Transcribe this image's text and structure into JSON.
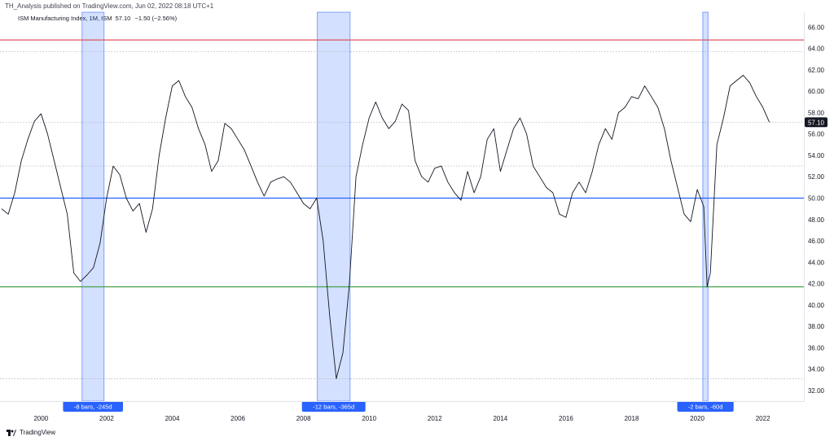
{
  "publisher_line": "TH_Analysis published on TradingView.com, Jun 02, 2022 08:18 UTC+1",
  "legend": {
    "name": "ISM Manufacturing Index, 1M, ISM",
    "value": "57.10",
    "change": "−1.50 (−2.56%)"
  },
  "footer_logo": "TradingView",
  "colors": {
    "line": "#131722",
    "red_level": "#e05260",
    "blue_level": "#2962ff",
    "green_level": "#43a047",
    "band_fill": "#2962ff",
    "label_bg": "#2962ff",
    "axis_text": "#131722",
    "price_label_bg": "#131722"
  },
  "chart_data": {
    "type": "line",
    "xlim": [
      1998.75,
      2023.25
    ],
    "ylim": [
      31.0,
      67.4
    ],
    "x_ticks": [
      "2000",
      "2002",
      "2004",
      "2006",
      "2008",
      "2010",
      "2012",
      "2014",
      "2016",
      "2018",
      "2020",
      "2022"
    ],
    "y_ticks": [
      "32.00",
      "34.00",
      "36.00",
      "38.00",
      "40.00",
      "42.00",
      "44.00",
      "46.00",
      "48.00",
      "50.00",
      "52.00",
      "54.00",
      "56.00",
      "58.00",
      "60.00",
      "62.00",
      "64.00",
      "66.00"
    ],
    "last_value_label": "57.10",
    "last_value": 57.1,
    "horizontal_levels": [
      {
        "value": 64.8,
        "color": "red"
      },
      {
        "value": 50.0,
        "color": "blue"
      },
      {
        "value": 41.7,
        "color": "green"
      }
    ],
    "dotted_levels": [
      63.7,
      57.1,
      53.0,
      33.1
    ],
    "shaded_ranges": [
      {
        "x0": 2001.25,
        "x1": 2001.92,
        "label": "-8 bars, -245d"
      },
      {
        "x0": 2008.42,
        "x1": 2009.42,
        "label": "-12 bars, -365d"
      },
      {
        "x0": 2020.17,
        "x1": 2020.33,
        "label": "-2 bars, -60d"
      }
    ],
    "series": [
      {
        "x": [
          1998.8,
          1999.0,
          1999.2,
          1999.4,
          1999.6,
          1999.8,
          2000.0,
          2000.2,
          2000.4,
          2000.6,
          2000.8,
          2001.0,
          2001.2,
          2001.4,
          2001.6,
          2001.8,
          2002.0,
          2002.2,
          2002.4,
          2002.6,
          2002.8,
          2003.0,
          2003.2,
          2003.4,
          2003.6,
          2003.8,
          2004.0,
          2004.2,
          2004.4,
          2004.6,
          2004.8,
          2005.0,
          2005.2,
          2005.4,
          2005.6,
          2005.8,
          2006.0,
          2006.2,
          2006.4,
          2006.6,
          2006.8,
          2007.0,
          2007.2,
          2007.4,
          2007.6,
          2007.8,
          2008.0,
          2008.2,
          2008.4,
          2008.6,
          2008.8,
          2009.0,
          2009.2,
          2009.4,
          2009.6,
          2009.8,
          2010.0,
          2010.2,
          2010.4,
          2010.6,
          2010.8,
          2011.0,
          2011.2,
          2011.4,
          2011.6,
          2011.8,
          2012.0,
          2012.2,
          2012.4,
          2012.6,
          2012.8,
          2013.0,
          2013.2,
          2013.4,
          2013.6,
          2013.8,
          2014.0,
          2014.2,
          2014.4,
          2014.6,
          2014.8,
          2015.0,
          2015.2,
          2015.4,
          2015.6,
          2015.8,
          2016.0,
          2016.2,
          2016.4,
          2016.6,
          2016.8,
          2017.0,
          2017.2,
          2017.4,
          2017.6,
          2017.8,
          2018.0,
          2018.2,
          2018.4,
          2018.6,
          2018.8,
          2019.0,
          2019.2,
          2019.4,
          2019.6,
          2019.8,
          2020.0,
          2020.2,
          2020.3,
          2020.4,
          2020.6,
          2020.8,
          2021.0,
          2021.2,
          2021.4,
          2021.6,
          2021.8,
          2022.0,
          2022.2
        ],
        "values": [
          49.0,
          48.5,
          50.5,
          53.5,
          55.5,
          57.2,
          57.9,
          56.0,
          53.5,
          51.0,
          48.5,
          43.0,
          42.2,
          42.8,
          43.5,
          45.8,
          50.0,
          53.0,
          52.2,
          50.0,
          48.8,
          49.5,
          46.8,
          49.0,
          54.0,
          57.5,
          60.5,
          61.0,
          59.5,
          58.5,
          56.5,
          55.0,
          52.5,
          53.5,
          57.0,
          56.5,
          55.5,
          54.5,
          53.0,
          51.5,
          50.2,
          51.5,
          51.8,
          52.0,
          51.5,
          50.5,
          49.5,
          49.0,
          50.0,
          46.0,
          38.9,
          33.1,
          35.5,
          42.0,
          52.0,
          55.0,
          57.5,
          59.0,
          57.5,
          56.5,
          57.2,
          58.8,
          58.2,
          53.5,
          52.0,
          51.5,
          52.8,
          53.0,
          51.5,
          50.5,
          49.8,
          52.5,
          50.5,
          52.0,
          55.5,
          56.5,
          52.5,
          54.5,
          56.5,
          57.5,
          56.0,
          53.0,
          52.0,
          51.0,
          50.5,
          48.5,
          48.2,
          50.5,
          51.5,
          50.5,
          52.5,
          55.0,
          56.5,
          55.5,
          58.0,
          58.5,
          59.5,
          59.3,
          60.5,
          59.5,
          58.5,
          56.5,
          53.5,
          51.0,
          48.5,
          47.8,
          50.8,
          49.2,
          41.7,
          43.0,
          55.0,
          57.5,
          60.5,
          61.0,
          61.5,
          60.8,
          59.5,
          58.5,
          57.1
        ]
      }
    ]
  }
}
